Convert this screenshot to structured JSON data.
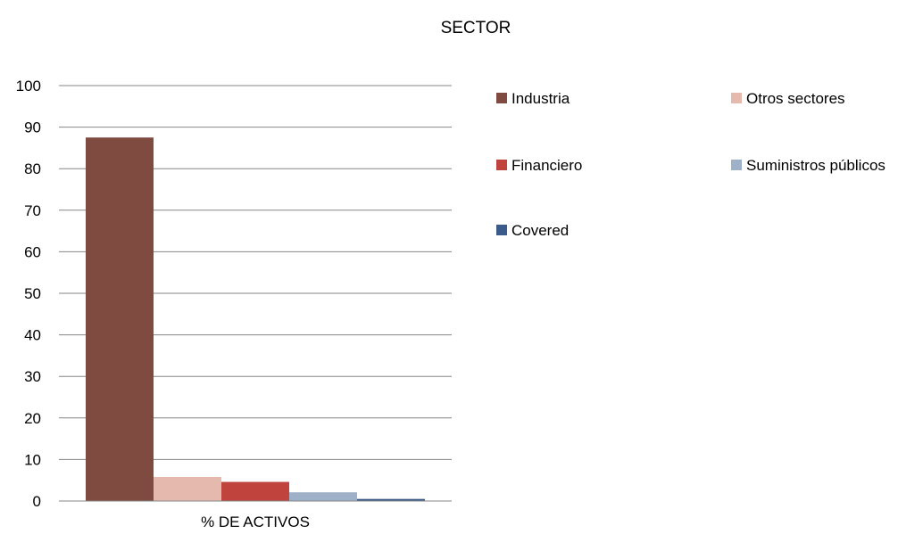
{
  "chart_data": {
    "type": "bar",
    "title": "SECTOR",
    "xlabel": "",
    "ylabel": "",
    "categories": [
      "% DE ACTIVOS"
    ],
    "ylim": [
      0,
      100
    ],
    "yticks": [
      0,
      10,
      20,
      30,
      40,
      50,
      60,
      70,
      80,
      90,
      100
    ],
    "grid": true,
    "legend_position": "right",
    "series": [
      {
        "name": "Industria",
        "values": [
          87.5
        ],
        "color": "#7f4a40"
      },
      {
        "name": "Otros sectores",
        "values": [
          5.8
        ],
        "color": "#e6b9ae"
      },
      {
        "name": "Financiero",
        "values": [
          4.6
        ],
        "color": "#c0443d"
      },
      {
        "name": "Suministros públicos",
        "values": [
          2.1
        ],
        "color": "#9fb1c8"
      },
      {
        "name": "Covered",
        "values": [
          0.5
        ],
        "color": "#3b5b8b"
      }
    ]
  }
}
